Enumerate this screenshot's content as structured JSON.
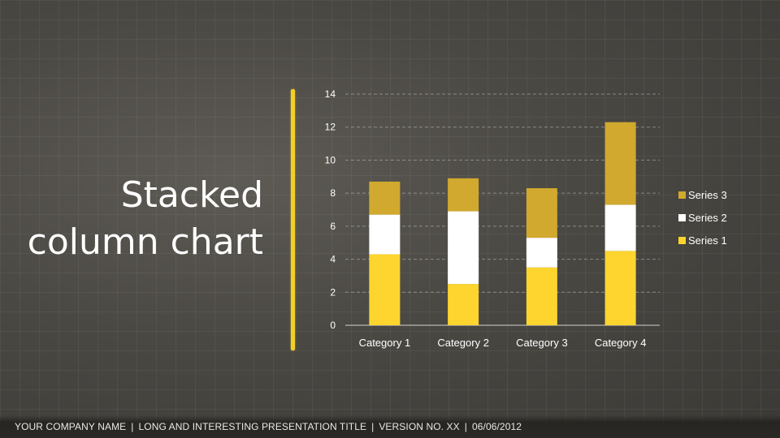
{
  "slide": {
    "title_line1": "Stacked",
    "title_line2": "column chart"
  },
  "footer": {
    "company": "YOUR COMPANY NAME",
    "presentation": "LONG AND INTERESTING PRESENTATION TITLE",
    "version": "VERSION NO. XX",
    "date": "06/06/2012",
    "separator": "|"
  },
  "colors": {
    "series1": "#fdd52e",
    "series2": "#ffffff",
    "series3": "#d1a92e",
    "text": "#ffffff",
    "accent_line": "#f2cf29"
  },
  "chart_data": {
    "type": "bar",
    "stacked": true,
    "categories": [
      "Category 1",
      "Category 2",
      "Category 3",
      "Category 4"
    ],
    "series": [
      {
        "name": "Series 1",
        "values": [
          4.3,
          2.5,
          3.5,
          4.5
        ],
        "color": "#fdd52e"
      },
      {
        "name": "Series 2",
        "values": [
          2.4,
          4.4,
          1.8,
          2.8
        ],
        "color": "#ffffff"
      },
      {
        "name": "Series 3",
        "values": [
          2.0,
          2.0,
          3.0,
          5.0
        ],
        "color": "#d1a92e"
      }
    ],
    "ylim": [
      0,
      14
    ],
    "yticks": [
      0,
      2,
      4,
      6,
      8,
      10,
      12,
      14
    ],
    "grid": true,
    "legend": "right"
  }
}
